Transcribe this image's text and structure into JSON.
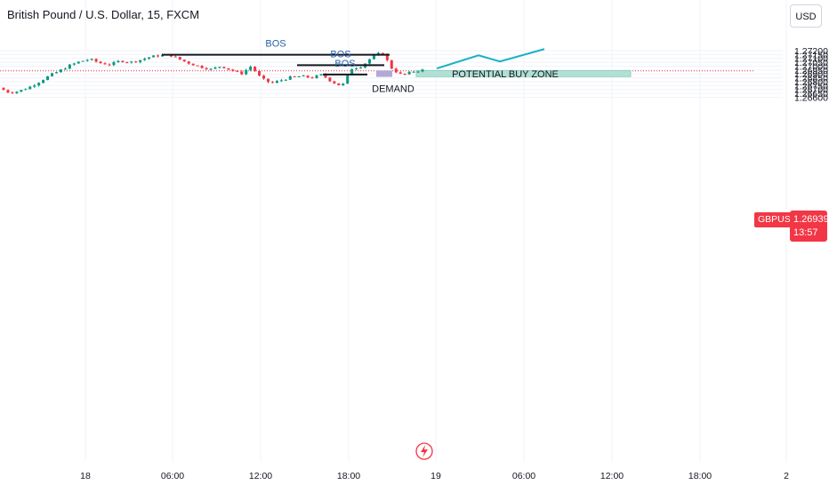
{
  "header": {
    "symbol_title": "British Pound / U.S. Dollar, 15, FXCM",
    "currency_button": "USD"
  },
  "price_badge": {
    "ticker": "GBPUSD",
    "last_price": "1.26939",
    "countdown": "13:57"
  },
  "colors": {
    "up_candle": "#089981",
    "down_candle": "#f23645",
    "projection_line": "#17b1c8",
    "buy_zone_fill": "#b2e0d5",
    "demand_fill": "#b2a8d9",
    "bos_line": "#131722",
    "price_line": "#f23645"
  },
  "chart_data": {
    "type": "candlestick",
    "symbol": "GBPUSD",
    "timeframe": "15",
    "x_tick_labels": [
      "18",
      "06:00",
      "12:00",
      "18:00",
      "19",
      "06:00",
      "12:00",
      "18:00",
      "2"
    ],
    "y_tick_labels": [
      "1.27200",
      "1.27150",
      "1.27100",
      "1.27050",
      "1.27000",
      "1.26950",
      "1.26900",
      "1.26850",
      "1.26800",
      "1.26750",
      "1.26700",
      "1.26650",
      "1.26600"
    ],
    "y_ticks": [
      1.272,
      1.2715,
      1.271,
      1.2705,
      1.27,
      1.2695,
      1.269,
      1.2685,
      1.268,
      1.2675,
      1.267,
      1.2665,
      1.266
    ],
    "ylim": [
      1.2658,
      1.2725
    ],
    "last_price": 1.26939,
    "price_path": [
      1.2672,
      1.2666,
      1.2668,
      1.2673,
      1.268,
      1.2688,
      1.2694,
      1.2701,
      1.2706,
      1.2709,
      1.2704,
      1.2702,
      1.2707,
      1.2705,
      1.2708,
      1.2712,
      1.2714,
      1.2714,
      1.2708,
      1.2703,
      1.2699,
      1.2696,
      1.27,
      1.2695,
      1.269,
      1.27,
      1.2684,
      1.2678,
      1.2682,
      1.2686,
      1.2687,
      1.2685,
      1.2689,
      1.268,
      1.2674,
      1.2697,
      1.27,
      1.2712,
      1.2718,
      1.2696,
      1.2688,
      1.2693,
      1.2695
    ],
    "annotations": {
      "bos": [
        {
          "label": "BOS",
          "price": 1.27147
        },
        {
          "label": "BOS",
          "price": 1.27013
        },
        {
          "label": "BOS",
          "price": 1.26892
        }
      ],
      "demand_zone": {
        "label": "DEMAND",
        "top": 1.26943,
        "bottom": 1.26862
      },
      "potential_buy_zone": {
        "label": "POTENTIAL BUY ZONE",
        "top": 1.26943,
        "bottom": 1.26865
      },
      "projection_path": [
        1.2697,
        1.2714,
        1.2706,
        1.2722
      ]
    }
  }
}
